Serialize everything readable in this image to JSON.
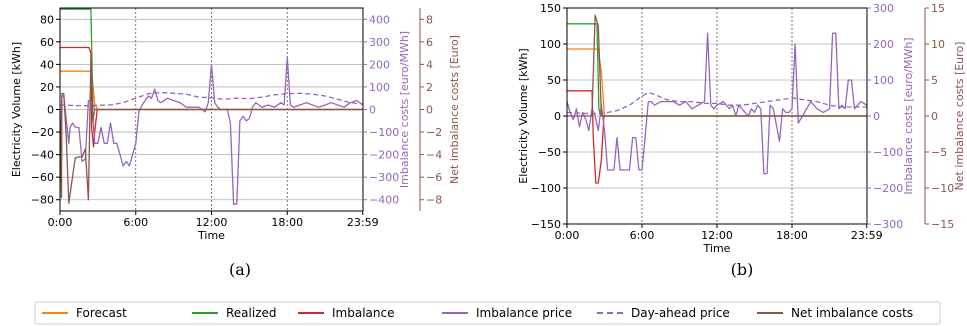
{
  "chart_data": [
    {
      "type": "line",
      "caption": "(a)",
      "xlabel": "Time",
      "ylabel": "Electricity Volume [kWh]",
      "ylabel_right": "Imbalance costs [euro/MWh]",
      "ylabel_right2": "Net imbalance costs [Euro]",
      "xlim": [
        0,
        24
      ],
      "ylim": [
        -90,
        90
      ],
      "ylim_right": [
        -450,
        450
      ],
      "ylim_right2": [
        -9,
        9
      ],
      "xticks": [
        0,
        6,
        12,
        18,
        23.98
      ],
      "xtick_labels": [
        "0:00",
        "6:00",
        "12:00",
        "18:00",
        "23:59"
      ],
      "yticks": [
        -80,
        -60,
        -40,
        -20,
        0,
        20,
        40,
        60,
        80
      ],
      "yticks_right": [
        -400,
        -300,
        -200,
        -100,
        0,
        100,
        200,
        300,
        400
      ],
      "yticks_right2": [
        -8,
        -6,
        -4,
        -2,
        0,
        2,
        4,
        6,
        8
      ],
      "vlines": [
        6,
        12,
        18
      ],
      "series": [
        {
          "name": "Forecast",
          "color": "#ff7f0e",
          "axis": "left",
          "style": "solid",
          "x": [
            0,
            2.5,
            2.75,
            3.0,
            24
          ],
          "y": [
            34,
            34,
            5,
            0,
            0
          ]
        },
        {
          "name": "Realized",
          "color": "#2ca02c",
          "axis": "left",
          "style": "solid",
          "x": [
            0,
            2.45,
            2.6,
            2.75,
            24
          ],
          "y": [
            89,
            89,
            5,
            0,
            0
          ]
        },
        {
          "name": "Imbalance",
          "color": "#d62728",
          "axis": "left",
          "style": "solid",
          "x": [
            0,
            2.3,
            2.45,
            2.5,
            2.65,
            2.75,
            2.95,
            3.0,
            24
          ],
          "y": [
            55,
            55,
            50,
            -15,
            -33,
            -20,
            0,
            0,
            0
          ]
        },
        {
          "name": "Imbalance price",
          "color": "#9467bd",
          "axis": "right",
          "style": "solid",
          "x": [
            0,
            0.15,
            0.3,
            0.7,
            0.8,
            1.0,
            1.25,
            1.5,
            1.75,
            2.0,
            2.25,
            2.5,
            2.6,
            2.75,
            3.0,
            3.25,
            3.5,
            3.75,
            4.0,
            4.25,
            4.5,
            4.75,
            5.0,
            5.25,
            5.5,
            5.75,
            6.0,
            6.25,
            6.5,
            6.75,
            7.0,
            7.25,
            7.5,
            7.75,
            8.0,
            8.5,
            9.0,
            9.5,
            10.0,
            10.5,
            11.0,
            11.25,
            11.5,
            11.75,
            12.0,
            12.25,
            12.5,
            12.75,
            13.0,
            13.25,
            13.5,
            13.75,
            14.0,
            14.25,
            14.5,
            14.75,
            15.0,
            15.25,
            15.5,
            15.75,
            16.0,
            16.5,
            17.0,
            17.5,
            17.75,
            18.0,
            18.25,
            18.5,
            19.0,
            19.5,
            20.0,
            20.5,
            21.0,
            21.5,
            22.0,
            22.5,
            23.0,
            23.5,
            23.98
          ],
          "y": [
            -330,
            60,
            60,
            -150,
            -80,
            -60,
            -80,
            -80,
            -230,
            -220,
            40,
            40,
            -30,
            -150,
            -150,
            -80,
            -150,
            -150,
            -60,
            -150,
            -150,
            -200,
            -250,
            -230,
            -250,
            -200,
            -150,
            -10,
            20,
            40,
            60,
            50,
            90,
            40,
            30,
            50,
            40,
            30,
            10,
            10,
            10,
            0,
            -10,
            30,
            200,
            30,
            10,
            0,
            0,
            0,
            -60,
            -420,
            -420,
            -50,
            -30,
            -50,
            -40,
            10,
            30,
            20,
            10,
            20,
            10,
            30,
            20,
            230,
            20,
            10,
            20,
            30,
            20,
            10,
            20,
            30,
            20,
            10,
            30,
            40,
            20
          ]
        },
        {
          "name": "Day-ahead price",
          "color": "#9467bd",
          "axis": "right",
          "style": "dashed",
          "x": [
            0,
            1,
            2,
            3,
            4,
            5,
            6,
            6.5,
            7,
            8,
            9,
            10,
            11,
            12,
            13,
            14,
            15,
            16,
            17,
            18,
            19,
            20,
            21,
            22,
            23,
            23.98
          ],
          "y": [
            20,
            18,
            17,
            18,
            20,
            30,
            50,
            60,
            70,
            75,
            72,
            68,
            55,
            52,
            45,
            50,
            48,
            55,
            65,
            70,
            72,
            68,
            60,
            45,
            30,
            25
          ]
        },
        {
          "name": "Net imbalance costs",
          "color": "#8c564b",
          "axis": "right2",
          "style": "solid",
          "x": [
            0,
            0.12,
            0.15,
            0.3,
            0.5,
            0.7,
            1.2,
            1.5,
            1.75,
            2.0,
            2.25,
            2.45,
            2.6,
            2.75,
            2.95,
            3.0,
            24
          ],
          "y": [
            0,
            -7.8,
            1.4,
            1.4,
            -2.5,
            -8.3,
            -4.3,
            -4.2,
            -4.2,
            -3.5,
            -8.0,
            4.5,
            -1.0,
            0,
            0,
            0,
            0
          ]
        }
      ]
    },
    {
      "type": "line",
      "caption": "(b)",
      "xlabel": "Time",
      "ylabel": "Electricity Volume [kWh]",
      "ylabel_right": "Imbalance costs [euro/MWh]",
      "ylabel_right2": "Net imbalance costs [Euro]",
      "xlim": [
        0,
        24
      ],
      "ylim": [
        -150,
        150
      ],
      "ylim_right": [
        -300,
        300
      ],
      "ylim_right2": [
        -15,
        15
      ],
      "xticks": [
        0,
        6,
        12,
        18,
        23.98
      ],
      "xtick_labels": [
        "0:00",
        "6:00",
        "12:00",
        "18:00",
        "23:59"
      ],
      "yticks": [
        -150,
        -100,
        -50,
        0,
        50,
        100,
        150
      ],
      "yticks_right": [
        -300,
        -200,
        -100,
        0,
        100,
        200,
        300
      ],
      "yticks_right2": [
        -15,
        -10,
        -5,
        0,
        5,
        10,
        15
      ],
      "vlines": [
        6,
        12,
        18
      ],
      "series": [
        {
          "name": "Forecast",
          "color": "#ff7f0e",
          "axis": "left",
          "style": "solid",
          "x": [
            0,
            2.5,
            2.75,
            3.0,
            24
          ],
          "y": [
            93,
            93,
            60,
            0,
            0
          ]
        },
        {
          "name": "Realized",
          "color": "#2ca02c",
          "axis": "left",
          "style": "solid",
          "x": [
            0,
            2.4,
            2.55,
            2.7,
            24
          ],
          "y": [
            128,
            128,
            10,
            0,
            0
          ]
        },
        {
          "name": "Imbalance",
          "color": "#d62728",
          "axis": "left",
          "style": "solid",
          "x": [
            0,
            2.0,
            2.1,
            2.3,
            2.5,
            2.75,
            2.95,
            3.0,
            24
          ],
          "y": [
            35,
            35,
            -30,
            -93,
            -93,
            -60,
            0,
            0,
            0
          ]
        },
        {
          "name": "Imbalance price",
          "color": "#9467bd",
          "axis": "right",
          "style": "solid",
          "x": [
            0,
            0.25,
            0.5,
            0.75,
            1.0,
            1.25,
            1.5,
            1.75,
            2.0,
            2.25,
            2.5,
            2.75,
            3.0,
            3.25,
            3.5,
            3.75,
            4.0,
            4.25,
            4.5,
            4.75,
            5.0,
            5.25,
            5.5,
            5.75,
            6.0,
            6.25,
            6.5,
            6.75,
            7.0,
            7.5,
            8.0,
            8.5,
            9.0,
            9.5,
            10.0,
            10.5,
            11.0,
            11.25,
            11.5,
            11.75,
            12.0,
            12.5,
            13.0,
            13.25,
            13.5,
            13.75,
            14.0,
            14.25,
            14.5,
            14.75,
            15.0,
            15.25,
            15.5,
            15.75,
            16.0,
            16.25,
            16.5,
            17.0,
            17.25,
            17.5,
            17.75,
            18.0,
            18.25,
            18.5,
            19.0,
            19.5,
            20.0,
            20.5,
            21.0,
            21.25,
            21.5,
            21.75,
            22.0,
            22.25,
            22.5,
            22.75,
            23.0,
            23.5,
            23.98
          ],
          "y": [
            40,
            10,
            -10,
            20,
            -30,
            10,
            -10,
            -40,
            20,
            0,
            -40,
            30,
            -40,
            -150,
            -150,
            -150,
            -60,
            -150,
            -150,
            -150,
            -150,
            -60,
            -60,
            -150,
            -150,
            -60,
            40,
            40,
            30,
            40,
            40,
            40,
            30,
            40,
            20,
            30,
            40,
            230,
            30,
            20,
            30,
            40,
            20,
            30,
            0,
            30,
            20,
            10,
            0,
            20,
            10,
            30,
            20,
            -160,
            -160,
            30,
            20,
            -70,
            20,
            10,
            10,
            20,
            200,
            -20,
            10,
            40,
            20,
            10,
            20,
            230,
            230,
            20,
            30,
            20,
            100,
            100,
            20,
            40,
            30
          ]
        },
        {
          "name": "Day-ahead price",
          "color": "#9467bd",
          "axis": "right",
          "style": "dashed",
          "x": [
            0,
            1,
            2,
            3,
            4,
            5,
            6,
            6.5,
            7,
            8,
            9,
            10,
            11,
            12,
            13,
            14,
            15,
            16,
            17,
            18,
            19,
            20,
            21,
            22,
            23,
            23.98
          ],
          "y": [
            10,
            8,
            6,
            8,
            15,
            30,
            55,
            65,
            60,
            45,
            40,
            40,
            35,
            35,
            30,
            30,
            35,
            40,
            45,
            50,
            45,
            40,
            30,
            25,
            25,
            25
          ]
        },
        {
          "name": "Net imbalance costs",
          "color": "#8c564b",
          "axis": "right2",
          "style": "solid",
          "x": [
            0,
            2.0,
            2.25,
            2.5,
            2.75,
            3.0,
            24
          ],
          "y": [
            0,
            0,
            14,
            12.5,
            0,
            0,
            0
          ]
        }
      ]
    }
  ],
  "legend": [
    {
      "label": "Forecast",
      "color": "#ff7f0e",
      "style": "solid"
    },
    {
      "label": "Realized",
      "color": "#2ca02c",
      "style": "solid"
    },
    {
      "label": "Imbalance",
      "color": "#d62728",
      "style": "solid"
    },
    {
      "label": "Imbalance price",
      "color": "#9467bd",
      "style": "solid"
    },
    {
      "label": "Day-ahead price",
      "color": "#9467bd",
      "style": "dashed"
    },
    {
      "label": "Net imbalance costs",
      "color": "#8c564b",
      "style": "solid"
    }
  ],
  "colors": {
    "right_axis": "#9467bd",
    "right2_axis": "#8c564b",
    "grid": "#b0b0b0"
  }
}
